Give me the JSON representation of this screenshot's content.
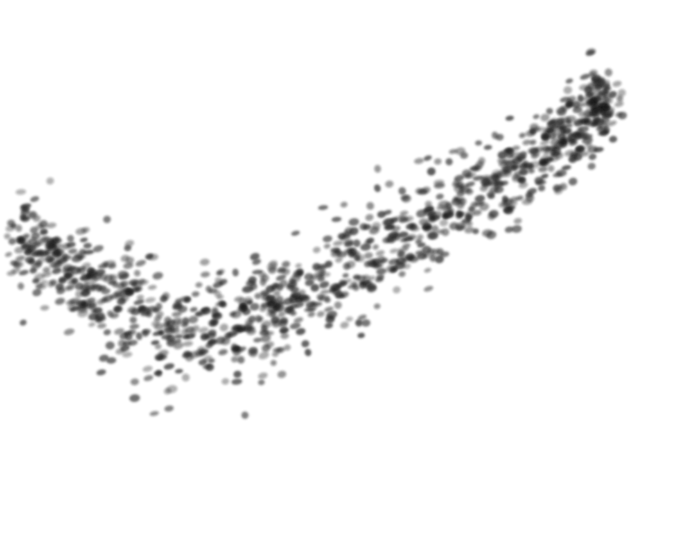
{
  "scene": {
    "background": "#ffffff",
    "mark_color": "#1a1a1a",
    "mark_opacity": 0.55,
    "mark_shape": "blurred-ellipse",
    "description_visible_text": ""
  }
}
